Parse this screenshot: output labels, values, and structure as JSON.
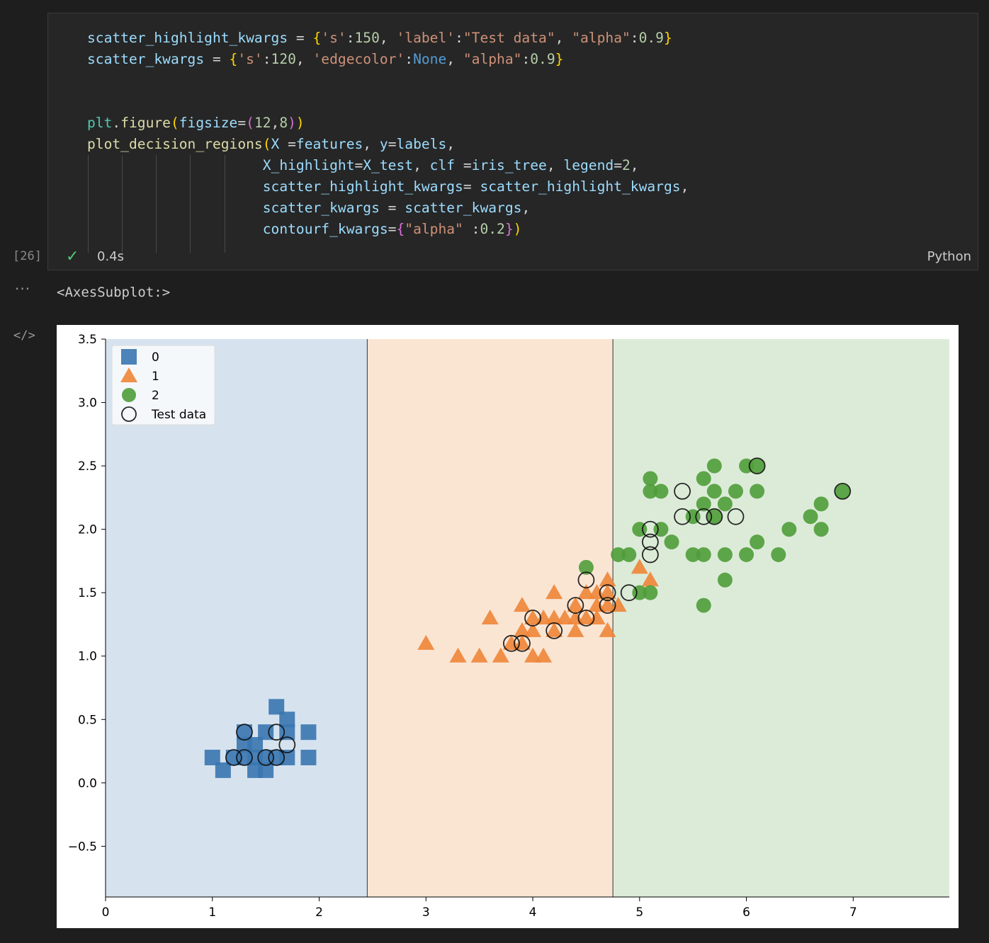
{
  "cell": {
    "execution_count": "[26]",
    "status_time": "0.4s",
    "language": "Python",
    "output_dots": "···",
    "output_text": "<AxesSubplot:>",
    "code_icon": "</>"
  },
  "code_lines": [
    "scatter_highlight_kwargs = {'s':150, 'label':\"Test data\", \"alpha\":0.9}",
    "scatter_kwargs = {'s':120, 'edgecolor':None, \"alpha\":0.9}",
    "",
    "",
    "plt.figure(figsize=(12,8))",
    "plot_decision_regions(X =features, y=labels,",
    "                     X_highlight=X_test, clf =iris_tree, legend=2,",
    "                     scatter_highlight_kwargs= scatter_highlight_kwargs,",
    "                     scatter_kwargs = scatter_kwargs,",
    "                     contourf_kwargs={\"alpha\" :0.2})"
  ],
  "icons": {
    "check": "check-icon",
    "more": "more-dots-icon",
    "code": "code-icon"
  },
  "chart_data": {
    "type": "scatter",
    "xlim": [
      0,
      7.9
    ],
    "ylim": [
      -0.9,
      3.5
    ],
    "xticks": [
      0,
      1,
      2,
      3,
      4,
      5,
      6,
      7
    ],
    "yticks": [
      -0.5,
      0.0,
      0.5,
      1.0,
      1.5,
      2.0,
      2.5,
      3.0,
      3.5
    ],
    "xtick_labels": [
      "0",
      "1",
      "2",
      "3",
      "4",
      "5",
      "6",
      "7"
    ],
    "ytick_labels": [
      "−0.5",
      "0.0",
      "0.5",
      "1.0",
      "1.5",
      "2.0",
      "2.5",
      "3.0",
      "3.5"
    ],
    "grid": false,
    "legend_position": "top-left",
    "decision_boundaries": [
      2.45,
      4.75
    ],
    "regions": [
      {
        "class": "0",
        "x_from": 0,
        "x_to": 2.45,
        "color": "#d6e3ef"
      },
      {
        "class": "1",
        "x_from": 2.45,
        "x_to": 4.75,
        "color": "#fae5d3"
      },
      {
        "class": "2",
        "x_from": 4.75,
        "x_to": 7.9,
        "color": "#dcebd8"
      }
    ],
    "legend": [
      {
        "label": "0",
        "marker": "square",
        "color": "#3a76b0"
      },
      {
        "label": "1",
        "marker": "triangle",
        "color": "#ee8537"
      },
      {
        "label": "2",
        "marker": "circle",
        "color": "#4f9d3a"
      },
      {
        "label": "Test data",
        "marker": "hollow-circle",
        "color": "#111111"
      }
    ],
    "series": [
      {
        "name": "0",
        "marker": "square",
        "color": "#3a76b0",
        "points": [
          [
            1.0,
            0.2
          ],
          [
            1.1,
            0.1
          ],
          [
            1.2,
            0.2
          ],
          [
            1.3,
            0.2
          ],
          [
            1.3,
            0.3
          ],
          [
            1.3,
            0.4
          ],
          [
            1.4,
            0.2
          ],
          [
            1.4,
            0.3
          ],
          [
            1.4,
            0.1
          ],
          [
            1.5,
            0.1
          ],
          [
            1.5,
            0.2
          ],
          [
            1.5,
            0.4
          ],
          [
            1.6,
            0.2
          ],
          [
            1.6,
            0.6
          ],
          [
            1.7,
            0.2
          ],
          [
            1.7,
            0.4
          ],
          [
            1.7,
            0.5
          ],
          [
            1.9,
            0.2
          ],
          [
            1.9,
            0.4
          ]
        ]
      },
      {
        "name": "1",
        "marker": "triangle",
        "color": "#ee8537",
        "points": [
          [
            3.0,
            1.1
          ],
          [
            3.3,
            1.0
          ],
          [
            3.5,
            1.0
          ],
          [
            3.6,
            1.3
          ],
          [
            3.7,
            1.0
          ],
          [
            3.8,
            1.1
          ],
          [
            3.9,
            1.1
          ],
          [
            3.9,
            1.4
          ],
          [
            3.9,
            1.2
          ],
          [
            4.0,
            1.0
          ],
          [
            4.0,
            1.2
          ],
          [
            4.0,
            1.3
          ],
          [
            4.1,
            1.0
          ],
          [
            4.1,
            1.3
          ],
          [
            4.2,
            1.3
          ],
          [
            4.2,
            1.5
          ],
          [
            4.2,
            1.2
          ],
          [
            4.3,
            1.3
          ],
          [
            4.4,
            1.2
          ],
          [
            4.4,
            1.3
          ],
          [
            4.4,
            1.4
          ],
          [
            4.5,
            1.3
          ],
          [
            4.5,
            1.5
          ],
          [
            4.6,
            1.3
          ],
          [
            4.6,
            1.4
          ],
          [
            4.6,
            1.5
          ],
          [
            4.7,
            1.2
          ],
          [
            4.7,
            1.4
          ],
          [
            4.7,
            1.5
          ],
          [
            4.7,
            1.6
          ],
          [
            4.8,
            1.4
          ],
          [
            5.0,
            1.7
          ],
          [
            5.1,
            1.6
          ]
        ]
      },
      {
        "name": "2",
        "marker": "circle",
        "color": "#4f9d3a",
        "points": [
          [
            4.5,
            1.7
          ],
          [
            4.8,
            1.8
          ],
          [
            4.9,
            1.8
          ],
          [
            5.0,
            1.5
          ],
          [
            5.0,
            2.0
          ],
          [
            5.1,
            1.5
          ],
          [
            5.1,
            2.3
          ],
          [
            5.1,
            2.4
          ],
          [
            5.2,
            2.0
          ],
          [
            5.2,
            2.3
          ],
          [
            5.3,
            1.9
          ],
          [
            5.5,
            1.8
          ],
          [
            5.5,
            2.1
          ],
          [
            5.6,
            1.4
          ],
          [
            5.6,
            1.8
          ],
          [
            5.6,
            2.2
          ],
          [
            5.6,
            2.4
          ],
          [
            5.7,
            2.1
          ],
          [
            5.7,
            2.3
          ],
          [
            5.7,
            2.5
          ],
          [
            5.8,
            1.6
          ],
          [
            5.8,
            1.8
          ],
          [
            5.8,
            2.2
          ],
          [
            5.9,
            2.3
          ],
          [
            6.0,
            1.8
          ],
          [
            6.0,
            2.5
          ],
          [
            6.1,
            1.9
          ],
          [
            6.1,
            2.3
          ],
          [
            6.1,
            2.5
          ],
          [
            6.3,
            1.8
          ],
          [
            6.4,
            2.0
          ],
          [
            6.6,
            2.1
          ],
          [
            6.7,
            2.0
          ],
          [
            6.7,
            2.2
          ],
          [
            6.9,
            2.3
          ]
        ]
      },
      {
        "name": "Test data",
        "marker": "hollow-circle",
        "color": "#111111",
        "points": [
          [
            1.2,
            0.2
          ],
          [
            1.3,
            0.2
          ],
          [
            1.3,
            0.4
          ],
          [
            1.5,
            0.2
          ],
          [
            1.6,
            0.2
          ],
          [
            1.6,
            0.4
          ],
          [
            1.7,
            0.3
          ],
          [
            3.8,
            1.1
          ],
          [
            3.9,
            1.1
          ],
          [
            4.0,
            1.3
          ],
          [
            4.2,
            1.2
          ],
          [
            4.4,
            1.4
          ],
          [
            4.5,
            1.3
          ],
          [
            4.5,
            1.6
          ],
          [
            4.7,
            1.4
          ],
          [
            4.7,
            1.5
          ],
          [
            4.9,
            1.5
          ],
          [
            5.1,
            1.8
          ],
          [
            5.1,
            1.9
          ],
          [
            5.1,
            2.0
          ],
          [
            5.4,
            2.1
          ],
          [
            5.4,
            2.3
          ],
          [
            5.6,
            2.1
          ],
          [
            5.7,
            2.1
          ],
          [
            5.9,
            2.1
          ],
          [
            6.1,
            2.5
          ],
          [
            6.9,
            2.3
          ]
        ]
      }
    ]
  }
}
